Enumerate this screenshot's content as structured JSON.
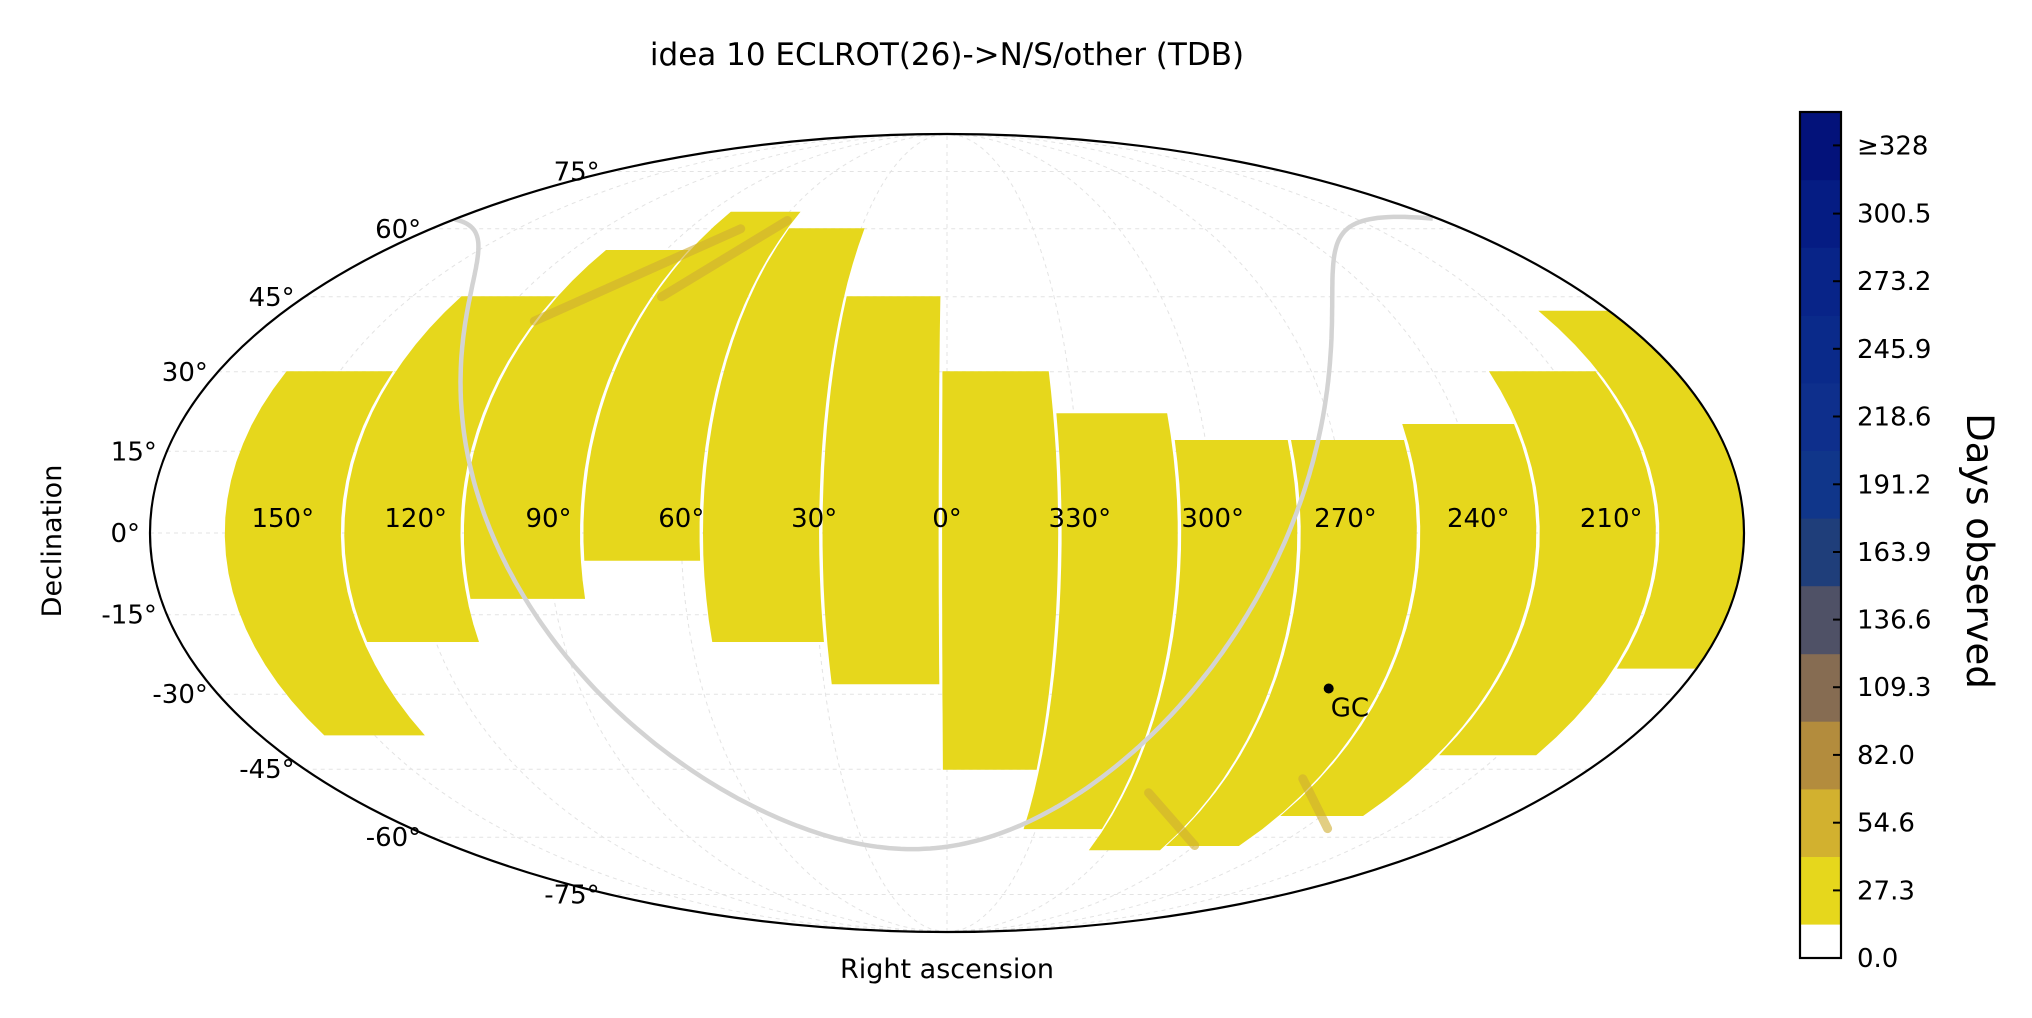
{
  "chart_data": {
    "type": "heatmap",
    "projection": "mollweide",
    "title": "idea 10 ECLROT(26)->N/S/other (TDB)",
    "xlabel": "Right ascension",
    "ylabel": "Declination",
    "ra_tick_labels": [
      {
        "ra": 150,
        "label": "150°"
      },
      {
        "ra": 120,
        "label": "120°"
      },
      {
        "ra": 90,
        "label": "90°"
      },
      {
        "ra": 60,
        "label": "60°"
      },
      {
        "ra": 30,
        "label": "30°"
      },
      {
        "ra": 0,
        "label": "0°"
      },
      {
        "ra": 330,
        "label": "330°"
      },
      {
        "ra": 300,
        "label": "300°"
      },
      {
        "ra": 270,
        "label": "270°"
      },
      {
        "ra": 240,
        "label": "240°"
      },
      {
        "ra": 210,
        "label": "210°"
      }
    ],
    "dec_tick_labels": [
      {
        "dec": 75,
        "label": "75°"
      },
      {
        "dec": 60,
        "label": "60°"
      },
      {
        "dec": 45,
        "label": "45°"
      },
      {
        "dec": 30,
        "label": "30°"
      },
      {
        "dec": 15,
        "label": "15°"
      },
      {
        "dec": 0,
        "label": "0°"
      },
      {
        "dec": -15,
        "label": "-15°"
      },
      {
        "dec": -30,
        "label": "-30°"
      },
      {
        "dec": -45,
        "label": "-45°"
      },
      {
        "dec": -60,
        "label": "-60°"
      },
      {
        "dec": -75,
        "label": "-75°"
      }
    ],
    "colorbar": {
      "title": "Days observed",
      "range": [
        0,
        341.5
      ],
      "ticks": [
        {
          "value": 0.0,
          "label": "0.0"
        },
        {
          "value": 27.3,
          "label": "27.3"
        },
        {
          "value": 54.6,
          "label": "54.6"
        },
        {
          "value": 82.0,
          "label": "82.0"
        },
        {
          "value": 109.3,
          "label": "109.3"
        },
        {
          "value": 136.6,
          "label": "136.6"
        },
        {
          "value": 163.9,
          "label": "163.9"
        },
        {
          "value": 191.2,
          "label": "191.2"
        },
        {
          "value": 218.6,
          "label": "218.6"
        },
        {
          "value": 245.9,
          "label": "245.9"
        },
        {
          "value": 273.2,
          "label": "273.2"
        },
        {
          "value": 300.5,
          "label": "300.5"
        },
        {
          "value": 328,
          "label": "≥328"
        }
      ],
      "bins": [
        {
          "from": 0.0,
          "to": 13.7,
          "color": "#ffffff"
        },
        {
          "from": 13.7,
          "to": 41.0,
          "color": "#e6d71c"
        },
        {
          "from": 41.0,
          "to": 68.3,
          "color": "#d2b12f"
        },
        {
          "from": 68.3,
          "to": 95.6,
          "color": "#b38c3d"
        },
        {
          "from": 95.6,
          "to": 122.9,
          "color": "#866c52"
        },
        {
          "from": 122.9,
          "to": 150.3,
          "color": "#4f5166"
        },
        {
          "from": 150.3,
          "to": 177.6,
          "color": "#1f3e7a"
        },
        {
          "from": 177.6,
          "to": 204.9,
          "color": "#10368a"
        },
        {
          "from": 204.9,
          "to": 232.2,
          "color": "#0e2f8c"
        },
        {
          "from": 232.2,
          "to": 259.5,
          "color": "#0a2a8a"
        },
        {
          "from": 259.5,
          "to": 286.9,
          "color": "#082488"
        },
        {
          "from": 286.9,
          "to": 314.2,
          "color": "#051c83"
        },
        {
          "from": 314.2,
          "to": 341.5,
          "color": "#03127a"
        }
      ]
    },
    "coverage": {
      "value_days": 27.3,
      "color": "#e6d71c",
      "overlap_color": "#cfae32",
      "strips": [
        {
          "ra_center": 150,
          "ra_width": 26,
          "dec_min": -38,
          "dec_max": 30
        },
        {
          "ra_center": 123,
          "ra_width": 26,
          "dec_min": -20,
          "dec_max": 45
        },
        {
          "ra_center": 96,
          "ra_width": 26,
          "dec_min": -12,
          "dec_max": 55
        },
        {
          "ra_center": 69,
          "ra_width": 26,
          "dec_min": -5,
          "dec_max": 64
        },
        {
          "ra_center": 42,
          "ra_width": 26,
          "dec_min": -20,
          "dec_max": 60
        },
        {
          "ra_center": 15,
          "ra_width": 26,
          "dec_min": -28,
          "dec_max": 45
        },
        {
          "ra_center": 348,
          "ra_width": 26,
          "dec_min": -45,
          "dec_max": 30
        },
        {
          "ra_center": 321,
          "ra_width": 26,
          "dec_min": -58,
          "dec_max": 22
        },
        {
          "ra_center": 294,
          "ra_width": 26,
          "dec_min": -63,
          "dec_max": 17
        },
        {
          "ra_center": 267,
          "ra_width": 26,
          "dec_min": -62,
          "dec_max": 17
        },
        {
          "ra_center": 240,
          "ra_width": 26,
          "dec_min": -55,
          "dec_max": 20
        },
        {
          "ra_center": 213,
          "ra_width": 26,
          "dec_min": -42,
          "dec_max": 30
        },
        {
          "ra_center": 186,
          "ra_width": 26,
          "dec_min": -25,
          "dec_max": 42
        }
      ]
    },
    "galactic_plane": {
      "color": "#d3d3d3"
    },
    "markers": [
      {
        "label": "GC",
        "ra": 266.4,
        "dec": -28.9
      }
    ],
    "grid": true
  }
}
